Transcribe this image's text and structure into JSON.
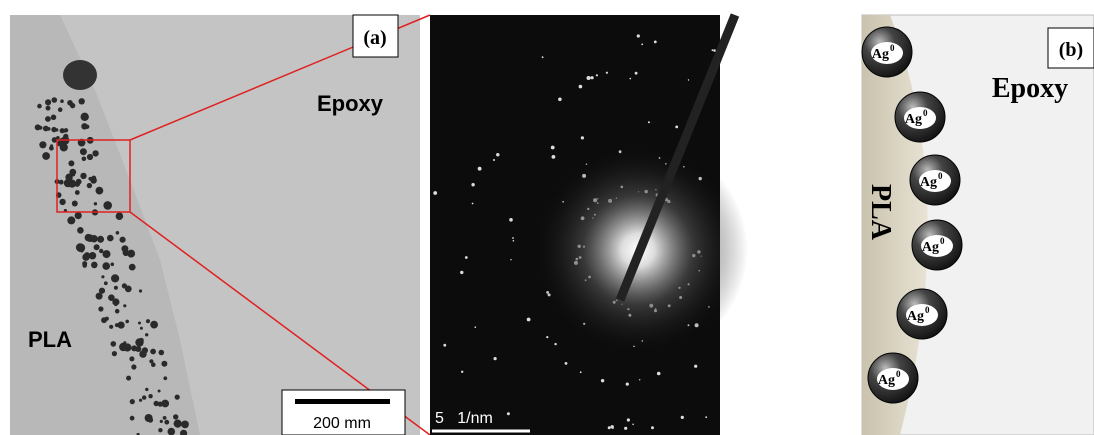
{
  "panel_a": {
    "label": "(a)",
    "region_epoxy": "Epoxy",
    "region_pla": "PLA",
    "scale_bar": "200 mm"
  },
  "diffraction": {
    "scale_bar": "5   1/nm"
  },
  "panel_b": {
    "label": "(b)",
    "region_epoxy": "Epoxy",
    "region_pla": "PLA",
    "particles": [
      {
        "base": "Ag",
        "sup": "0"
      },
      {
        "base": "Ag",
        "sup": "0"
      },
      {
        "base": "Ag",
        "sup": "0"
      },
      {
        "base": "Ag",
        "sup": "0"
      },
      {
        "base": "Ag",
        "sup": "0"
      },
      {
        "base": "Ag",
        "sup": "0"
      }
    ]
  }
}
